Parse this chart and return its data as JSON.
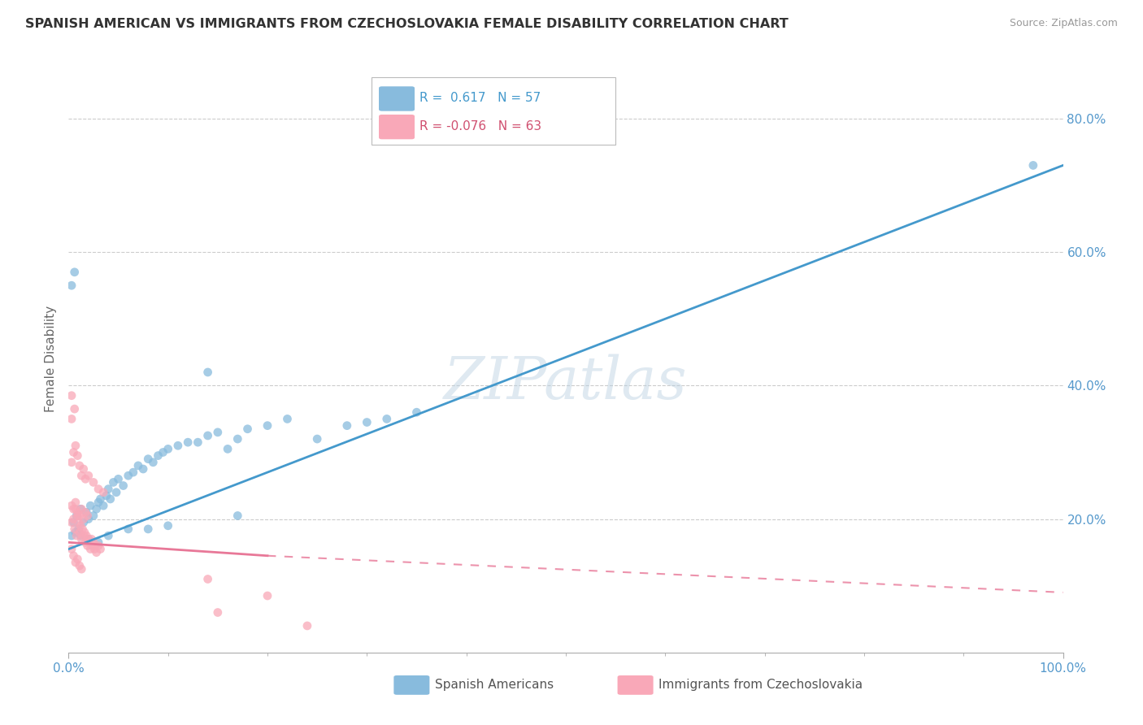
{
  "title": "SPANISH AMERICAN VS IMMIGRANTS FROM CZECHOSLOVAKIA FEMALE DISABILITY CORRELATION CHART",
  "source": "Source: ZipAtlas.com",
  "ylabel": "Female Disability",
  "xlim": [
    0.0,
    1.0
  ],
  "ylim": [
    0.0,
    0.88
  ],
  "ytick_labels": [
    "20.0%",
    "40.0%",
    "60.0%",
    "80.0%"
  ],
  "ytick_vals": [
    0.2,
    0.4,
    0.6,
    0.8
  ],
  "watermark": "ZIPatlas",
  "blue_color": "#88bbdd",
  "pink_color": "#f9a8b8",
  "blue_line_color": "#4499cc",
  "pink_line_color": "#e87898",
  "blue_line": [
    0.0,
    0.155,
    1.0,
    0.73
  ],
  "pink_line_solid": [
    0.0,
    0.165,
    0.2,
    0.145
  ],
  "pink_line_dash": [
    0.2,
    0.145,
    1.0,
    0.09
  ],
  "blue_scatter": [
    [
      0.005,
      0.195
    ],
    [
      0.008,
      0.205
    ],
    [
      0.01,
      0.185
    ],
    [
      0.012,
      0.215
    ],
    [
      0.015,
      0.195
    ],
    [
      0.018,
      0.21
    ],
    [
      0.02,
      0.2
    ],
    [
      0.022,
      0.22
    ],
    [
      0.025,
      0.205
    ],
    [
      0.028,
      0.215
    ],
    [
      0.03,
      0.225
    ],
    [
      0.032,
      0.23
    ],
    [
      0.035,
      0.22
    ],
    [
      0.038,
      0.235
    ],
    [
      0.04,
      0.245
    ],
    [
      0.042,
      0.23
    ],
    [
      0.045,
      0.255
    ],
    [
      0.048,
      0.24
    ],
    [
      0.05,
      0.26
    ],
    [
      0.055,
      0.25
    ],
    [
      0.06,
      0.265
    ],
    [
      0.065,
      0.27
    ],
    [
      0.07,
      0.28
    ],
    [
      0.075,
      0.275
    ],
    [
      0.08,
      0.29
    ],
    [
      0.085,
      0.285
    ],
    [
      0.09,
      0.295
    ],
    [
      0.095,
      0.3
    ],
    [
      0.1,
      0.305
    ],
    [
      0.11,
      0.31
    ],
    [
      0.12,
      0.315
    ],
    [
      0.13,
      0.315
    ],
    [
      0.14,
      0.325
    ],
    [
      0.15,
      0.33
    ],
    [
      0.16,
      0.305
    ],
    [
      0.17,
      0.32
    ],
    [
      0.18,
      0.335
    ],
    [
      0.2,
      0.34
    ],
    [
      0.22,
      0.35
    ],
    [
      0.25,
      0.32
    ],
    [
      0.28,
      0.34
    ],
    [
      0.3,
      0.345
    ],
    [
      0.32,
      0.35
    ],
    [
      0.35,
      0.36
    ],
    [
      0.003,
      0.55
    ],
    [
      0.006,
      0.57
    ],
    [
      0.14,
      0.42
    ],
    [
      0.003,
      0.175
    ],
    [
      0.007,
      0.18
    ],
    [
      0.012,
      0.175
    ],
    [
      0.02,
      0.17
    ],
    [
      0.03,
      0.165
    ],
    [
      0.04,
      0.175
    ],
    [
      0.06,
      0.185
    ],
    [
      0.08,
      0.185
    ],
    [
      0.1,
      0.19
    ],
    [
      0.17,
      0.205
    ],
    [
      0.97,
      0.73
    ]
  ],
  "pink_scatter": [
    [
      0.003,
      0.195
    ],
    [
      0.005,
      0.2
    ],
    [
      0.006,
      0.185
    ],
    [
      0.007,
      0.215
    ],
    [
      0.008,
      0.175
    ],
    [
      0.009,
      0.205
    ],
    [
      0.01,
      0.195
    ],
    [
      0.011,
      0.18
    ],
    [
      0.012,
      0.19
    ],
    [
      0.013,
      0.17
    ],
    [
      0.014,
      0.185
    ],
    [
      0.015,
      0.175
    ],
    [
      0.016,
      0.18
    ],
    [
      0.017,
      0.165
    ],
    [
      0.018,
      0.175
    ],
    [
      0.019,
      0.16
    ],
    [
      0.02,
      0.17
    ],
    [
      0.021,
      0.165
    ],
    [
      0.022,
      0.155
    ],
    [
      0.023,
      0.17
    ],
    [
      0.024,
      0.16
    ],
    [
      0.025,
      0.165
    ],
    [
      0.026,
      0.155
    ],
    [
      0.027,
      0.16
    ],
    [
      0.028,
      0.15
    ],
    [
      0.03,
      0.16
    ],
    [
      0.032,
      0.155
    ],
    [
      0.003,
      0.22
    ],
    [
      0.005,
      0.215
    ],
    [
      0.007,
      0.225
    ],
    [
      0.009,
      0.21
    ],
    [
      0.011,
      0.205
    ],
    [
      0.013,
      0.215
    ],
    [
      0.015,
      0.2
    ],
    [
      0.017,
      0.21
    ],
    [
      0.019,
      0.205
    ],
    [
      0.003,
      0.285
    ],
    [
      0.005,
      0.3
    ],
    [
      0.007,
      0.31
    ],
    [
      0.009,
      0.295
    ],
    [
      0.011,
      0.28
    ],
    [
      0.013,
      0.265
    ],
    [
      0.015,
      0.275
    ],
    [
      0.017,
      0.26
    ],
    [
      0.02,
      0.265
    ],
    [
      0.025,
      0.255
    ],
    [
      0.03,
      0.245
    ],
    [
      0.035,
      0.24
    ],
    [
      0.003,
      0.35
    ],
    [
      0.006,
      0.365
    ],
    [
      0.003,
      0.155
    ],
    [
      0.005,
      0.145
    ],
    [
      0.007,
      0.135
    ],
    [
      0.009,
      0.14
    ],
    [
      0.011,
      0.13
    ],
    [
      0.013,
      0.125
    ],
    [
      0.14,
      0.11
    ],
    [
      0.2,
      0.085
    ],
    [
      0.003,
      0.385
    ],
    [
      0.15,
      0.06
    ],
    [
      0.24,
      0.04
    ]
  ]
}
